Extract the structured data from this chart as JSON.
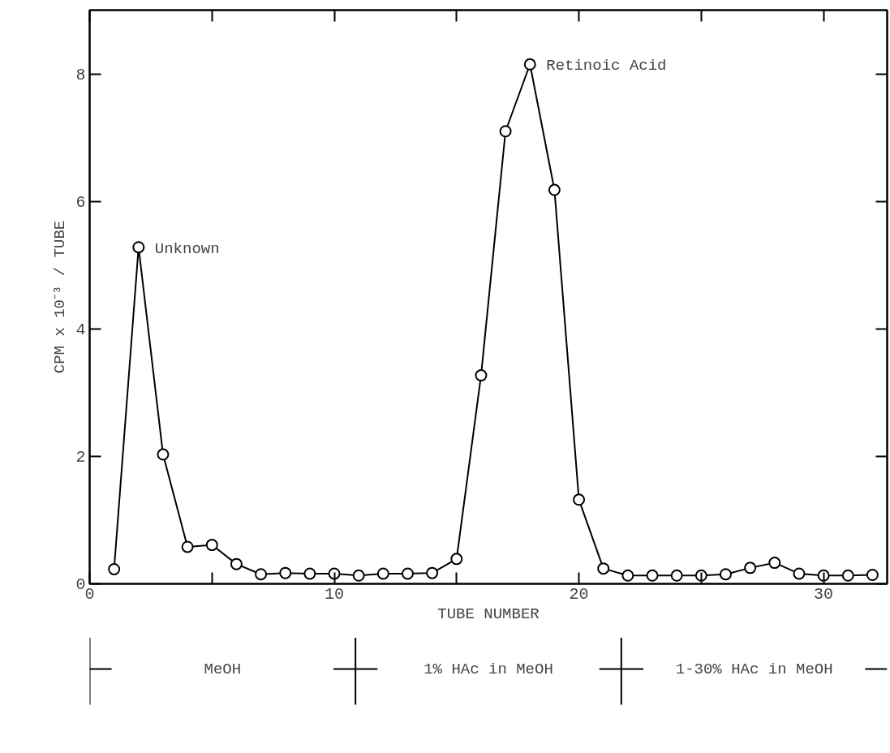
{
  "chart_data": {
    "type": "line",
    "xlabel": "TUBE NUMBER",
    "ylabel": "CPM x 10⁻³ / TUBE",
    "x": [
      1,
      2,
      3,
      4,
      5,
      6,
      7,
      8,
      9,
      10,
      11,
      12,
      13,
      14,
      15,
      16,
      17,
      18,
      19,
      20,
      21,
      22,
      23,
      24,
      25,
      26,
      27,
      28,
      29,
      30,
      31,
      32
    ],
    "series": [
      {
        "color": "#000000",
        "values": [
          0.23,
          5.28,
          2.03,
          0.58,
          0.61,
          0.31,
          0.15,
          0.17,
          0.16,
          0.16,
          0.13,
          0.16,
          0.16,
          0.17,
          0.39,
          3.27,
          7.1,
          8.15,
          6.18,
          1.32,
          0.24,
          0.13,
          0.13,
          0.13,
          0.13,
          0.15,
          0.25,
          0.33,
          0.16,
          0.13,
          0.13,
          0.14
        ]
      }
    ],
    "marker": "circle",
    "line_style": "solid",
    "grid": false,
    "xlim": [
      0,
      32.6
    ],
    "ylim": [
      0,
      9
    ],
    "xticks": [
      0,
      {
        "value": 5,
        "label": null
      },
      10,
      {
        "value": 15,
        "label": null
      },
      20,
      {
        "value": 25,
        "label": null
      },
      30
    ],
    "yticks": [
      0,
      2,
      4,
      6,
      8
    ],
    "annotations": [
      {
        "text": "Unknown",
        "x": 2,
        "y": 5.28
      },
      {
        "text": "Retinoic Acid",
        "x": 18,
        "y": 8.15
      },
      "MeOH",
      "1% HAc in MeOH",
      "1-30% HAc in MeOH"
    ]
  }
}
